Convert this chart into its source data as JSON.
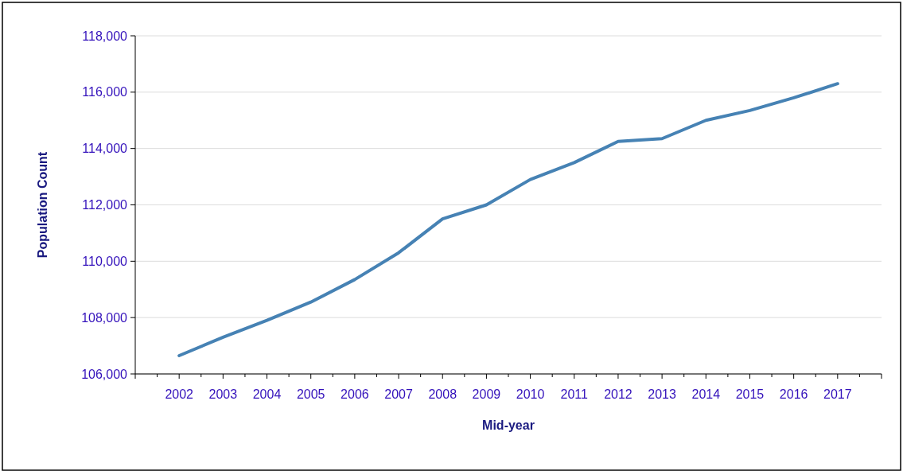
{
  "chart_data": {
    "type": "line",
    "xlabel": "Mid-year",
    "ylabel": "Population Count",
    "categories": [
      "2002",
      "2003",
      "2004",
      "2005",
      "2006",
      "2007",
      "2008",
      "2009",
      "2010",
      "2011",
      "2012",
      "2013",
      "2014",
      "2015",
      "2016",
      "2017"
    ],
    "series": [
      {
        "color": "#4682b4",
        "values": [
          106650,
          107300,
          107900,
          108550,
          109350,
          110300,
          111500,
          112000,
          112900,
          113500,
          114250,
          114350,
          115000,
          115350,
          115800,
          116300
        ]
      }
    ],
    "ylim": [
      106000,
      118000
    ],
    "yticks": [
      {
        "value": 106000,
        "label": "106,000"
      },
      {
        "value": 108000,
        "label": "108,000"
      },
      {
        "value": 110000,
        "label": "110,000"
      },
      {
        "value": 112000,
        "label": "112,000"
      },
      {
        "value": 114000,
        "label": "114,000"
      },
      {
        "value": 116000,
        "label": "116,000"
      },
      {
        "value": 118000,
        "label": "118,000"
      }
    ],
    "grid": "y",
    "marker": "none",
    "line_style": "solid"
  }
}
